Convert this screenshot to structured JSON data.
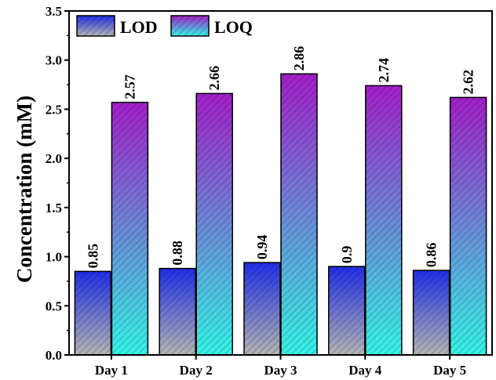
{
  "chart_data": {
    "type": "bar",
    "title": "",
    "xlabel": "",
    "ylabel": "Concentration (mM)",
    "ylim": [
      0,
      3.5
    ],
    "yticks": [
      0.0,
      0.5,
      1.0,
      1.5,
      2.0,
      2.5,
      3.0,
      3.5
    ],
    "ytick_labels": [
      "0.0",
      "0.5",
      "1.0",
      "1.5",
      "2.0",
      "2.5",
      "3.0",
      "3.5"
    ],
    "categories": [
      "Day 1",
      "Day 2",
      "Day 3",
      "Day 4",
      "Day 5"
    ],
    "grid": false,
    "legend_position": "top-left",
    "series": [
      {
        "name": "LOD",
        "values": [
          0.85,
          0.88,
          0.94,
          0.9,
          0.86
        ],
        "labels": [
          "0.85",
          "0.88",
          "0.94",
          "0.9",
          "0.86"
        ],
        "gradient_top": "#1f2fe6",
        "gradient_bottom": "#b4b4b4"
      },
      {
        "name": "LOQ",
        "values": [
          2.57,
          2.66,
          2.86,
          2.74,
          2.62
        ],
        "labels": [
          "2.57",
          "2.66",
          "2.86",
          "2.74",
          "2.62"
        ],
        "gradient_top": "#a21fc8",
        "gradient_bottom": "#35f2e6"
      }
    ]
  }
}
